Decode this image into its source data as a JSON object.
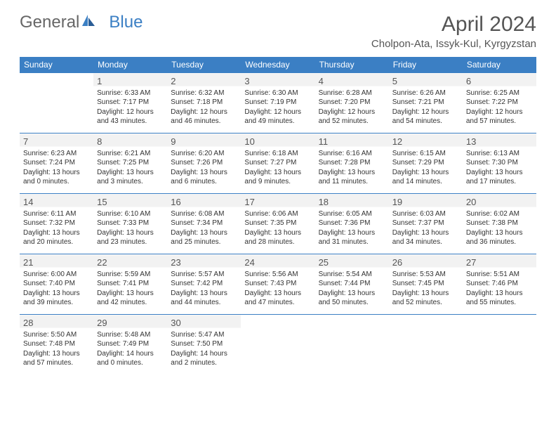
{
  "logo": {
    "text1": "General",
    "text2": "Blue"
  },
  "title": "April 2024",
  "location": "Cholpon-Ata, Issyk-Kul, Kyrgyzstan",
  "colors": {
    "header_bg": "#3b7fc4",
    "header_text": "#ffffff",
    "border": "#3b7fc4",
    "shaded_bg": "#f2f2f2",
    "text": "#333333",
    "title_text": "#555555"
  },
  "day_headers": [
    "Sunday",
    "Monday",
    "Tuesday",
    "Wednesday",
    "Thursday",
    "Friday",
    "Saturday"
  ],
  "weeks": [
    [
      {
        "num": "",
        "sunrise": "",
        "sunset": "",
        "daylight1": "",
        "daylight2": ""
      },
      {
        "num": "1",
        "sunrise": "Sunrise: 6:33 AM",
        "sunset": "Sunset: 7:17 PM",
        "daylight1": "Daylight: 12 hours",
        "daylight2": "and 43 minutes."
      },
      {
        "num": "2",
        "sunrise": "Sunrise: 6:32 AM",
        "sunset": "Sunset: 7:18 PM",
        "daylight1": "Daylight: 12 hours",
        "daylight2": "and 46 minutes."
      },
      {
        "num": "3",
        "sunrise": "Sunrise: 6:30 AM",
        "sunset": "Sunset: 7:19 PM",
        "daylight1": "Daylight: 12 hours",
        "daylight2": "and 49 minutes."
      },
      {
        "num": "4",
        "sunrise": "Sunrise: 6:28 AM",
        "sunset": "Sunset: 7:20 PM",
        "daylight1": "Daylight: 12 hours",
        "daylight2": "and 52 minutes."
      },
      {
        "num": "5",
        "sunrise": "Sunrise: 6:26 AM",
        "sunset": "Sunset: 7:21 PM",
        "daylight1": "Daylight: 12 hours",
        "daylight2": "and 54 minutes."
      },
      {
        "num": "6",
        "sunrise": "Sunrise: 6:25 AM",
        "sunset": "Sunset: 7:22 PM",
        "daylight1": "Daylight: 12 hours",
        "daylight2": "and 57 minutes."
      }
    ],
    [
      {
        "num": "7",
        "sunrise": "Sunrise: 6:23 AM",
        "sunset": "Sunset: 7:24 PM",
        "daylight1": "Daylight: 13 hours",
        "daylight2": "and 0 minutes."
      },
      {
        "num": "8",
        "sunrise": "Sunrise: 6:21 AM",
        "sunset": "Sunset: 7:25 PM",
        "daylight1": "Daylight: 13 hours",
        "daylight2": "and 3 minutes."
      },
      {
        "num": "9",
        "sunrise": "Sunrise: 6:20 AM",
        "sunset": "Sunset: 7:26 PM",
        "daylight1": "Daylight: 13 hours",
        "daylight2": "and 6 minutes."
      },
      {
        "num": "10",
        "sunrise": "Sunrise: 6:18 AM",
        "sunset": "Sunset: 7:27 PM",
        "daylight1": "Daylight: 13 hours",
        "daylight2": "and 9 minutes."
      },
      {
        "num": "11",
        "sunrise": "Sunrise: 6:16 AM",
        "sunset": "Sunset: 7:28 PM",
        "daylight1": "Daylight: 13 hours",
        "daylight2": "and 11 minutes."
      },
      {
        "num": "12",
        "sunrise": "Sunrise: 6:15 AM",
        "sunset": "Sunset: 7:29 PM",
        "daylight1": "Daylight: 13 hours",
        "daylight2": "and 14 minutes."
      },
      {
        "num": "13",
        "sunrise": "Sunrise: 6:13 AM",
        "sunset": "Sunset: 7:30 PM",
        "daylight1": "Daylight: 13 hours",
        "daylight2": "and 17 minutes."
      }
    ],
    [
      {
        "num": "14",
        "sunrise": "Sunrise: 6:11 AM",
        "sunset": "Sunset: 7:32 PM",
        "daylight1": "Daylight: 13 hours",
        "daylight2": "and 20 minutes."
      },
      {
        "num": "15",
        "sunrise": "Sunrise: 6:10 AM",
        "sunset": "Sunset: 7:33 PM",
        "daylight1": "Daylight: 13 hours",
        "daylight2": "and 23 minutes."
      },
      {
        "num": "16",
        "sunrise": "Sunrise: 6:08 AM",
        "sunset": "Sunset: 7:34 PM",
        "daylight1": "Daylight: 13 hours",
        "daylight2": "and 25 minutes."
      },
      {
        "num": "17",
        "sunrise": "Sunrise: 6:06 AM",
        "sunset": "Sunset: 7:35 PM",
        "daylight1": "Daylight: 13 hours",
        "daylight2": "and 28 minutes."
      },
      {
        "num": "18",
        "sunrise": "Sunrise: 6:05 AM",
        "sunset": "Sunset: 7:36 PM",
        "daylight1": "Daylight: 13 hours",
        "daylight2": "and 31 minutes."
      },
      {
        "num": "19",
        "sunrise": "Sunrise: 6:03 AM",
        "sunset": "Sunset: 7:37 PM",
        "daylight1": "Daylight: 13 hours",
        "daylight2": "and 34 minutes."
      },
      {
        "num": "20",
        "sunrise": "Sunrise: 6:02 AM",
        "sunset": "Sunset: 7:38 PM",
        "daylight1": "Daylight: 13 hours",
        "daylight2": "and 36 minutes."
      }
    ],
    [
      {
        "num": "21",
        "sunrise": "Sunrise: 6:00 AM",
        "sunset": "Sunset: 7:40 PM",
        "daylight1": "Daylight: 13 hours",
        "daylight2": "and 39 minutes."
      },
      {
        "num": "22",
        "sunrise": "Sunrise: 5:59 AM",
        "sunset": "Sunset: 7:41 PM",
        "daylight1": "Daylight: 13 hours",
        "daylight2": "and 42 minutes."
      },
      {
        "num": "23",
        "sunrise": "Sunrise: 5:57 AM",
        "sunset": "Sunset: 7:42 PM",
        "daylight1": "Daylight: 13 hours",
        "daylight2": "and 44 minutes."
      },
      {
        "num": "24",
        "sunrise": "Sunrise: 5:56 AM",
        "sunset": "Sunset: 7:43 PM",
        "daylight1": "Daylight: 13 hours",
        "daylight2": "and 47 minutes."
      },
      {
        "num": "25",
        "sunrise": "Sunrise: 5:54 AM",
        "sunset": "Sunset: 7:44 PM",
        "daylight1": "Daylight: 13 hours",
        "daylight2": "and 50 minutes."
      },
      {
        "num": "26",
        "sunrise": "Sunrise: 5:53 AM",
        "sunset": "Sunset: 7:45 PM",
        "daylight1": "Daylight: 13 hours",
        "daylight2": "and 52 minutes."
      },
      {
        "num": "27",
        "sunrise": "Sunrise: 5:51 AM",
        "sunset": "Sunset: 7:46 PM",
        "daylight1": "Daylight: 13 hours",
        "daylight2": "and 55 minutes."
      }
    ],
    [
      {
        "num": "28",
        "sunrise": "Sunrise: 5:50 AM",
        "sunset": "Sunset: 7:48 PM",
        "daylight1": "Daylight: 13 hours",
        "daylight2": "and 57 minutes."
      },
      {
        "num": "29",
        "sunrise": "Sunrise: 5:48 AM",
        "sunset": "Sunset: 7:49 PM",
        "daylight1": "Daylight: 14 hours",
        "daylight2": "and 0 minutes."
      },
      {
        "num": "30",
        "sunrise": "Sunrise: 5:47 AM",
        "sunset": "Sunset: 7:50 PM",
        "daylight1": "Daylight: 14 hours",
        "daylight2": "and 2 minutes."
      },
      {
        "num": "",
        "sunrise": "",
        "sunset": "",
        "daylight1": "",
        "daylight2": ""
      },
      {
        "num": "",
        "sunrise": "",
        "sunset": "",
        "daylight1": "",
        "daylight2": ""
      },
      {
        "num": "",
        "sunrise": "",
        "sunset": "",
        "daylight1": "",
        "daylight2": ""
      },
      {
        "num": "",
        "sunrise": "",
        "sunset": "",
        "daylight1": "",
        "daylight2": ""
      }
    ]
  ]
}
